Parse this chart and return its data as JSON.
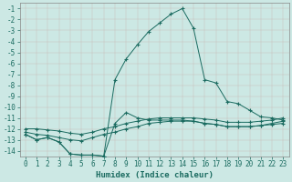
{
  "xlabel": "Humidex (Indice chaleur)",
  "bg_color": "#cce8e4",
  "grid_color": "#b0d8d2",
  "line_color": "#1a6b60",
  "xlim": [
    -0.5,
    23.5
  ],
  "ylim": [
    -14.5,
    -0.5
  ],
  "xticks": [
    0,
    1,
    2,
    3,
    4,
    5,
    6,
    7,
    8,
    9,
    10,
    11,
    12,
    13,
    14,
    15,
    16,
    17,
    18,
    19,
    20,
    21,
    22,
    23
  ],
  "yticks": [
    -1,
    -2,
    -3,
    -4,
    -5,
    -6,
    -7,
    -8,
    -9,
    -10,
    -11,
    -12,
    -13,
    -14
  ],
  "line_peak_x": [
    0,
    1,
    2,
    3,
    4,
    5,
    6,
    7,
    8,
    9,
    10,
    11,
    12,
    13,
    14,
    15,
    16,
    17,
    18,
    19,
    20,
    21,
    22,
    23
  ],
  "line_peak_y": [
    -12.5,
    -13.0,
    -12.8,
    -13.2,
    -14.3,
    -14.4,
    -14.4,
    -14.5,
    -7.5,
    -5.6,
    -4.3,
    -3.1,
    -2.3,
    -1.5,
    -1.0,
    -2.8,
    -7.5,
    -7.8,
    -9.5,
    -9.7,
    -10.3,
    -10.9,
    -11.0,
    -11.2
  ],
  "line_top_x": [
    0,
    1,
    2,
    3,
    4,
    5,
    6,
    7,
    8,
    9,
    10,
    11,
    12,
    13,
    14,
    15,
    16,
    17,
    18,
    19,
    20,
    21,
    22,
    23
  ],
  "line_top_y": [
    -12.5,
    -13.0,
    -12.8,
    -13.2,
    -14.3,
    -14.4,
    -14.4,
    -14.5,
    -11.5,
    -10.5,
    -11.0,
    -11.2,
    -11.2,
    -11.2,
    -11.2,
    -11.3,
    -11.5,
    -11.6,
    -11.8,
    -11.8,
    -11.8,
    -11.7,
    -11.6,
    -11.5
  ],
  "line_mid_x": [
    0,
    1,
    2,
    3,
    4,
    5,
    6,
    7,
    8,
    9,
    10,
    11,
    12,
    13,
    14,
    15,
    16,
    17,
    18,
    19,
    20,
    21,
    22,
    23
  ],
  "line_mid_y": [
    -12.3,
    -12.5,
    -12.6,
    -12.8,
    -13.0,
    -13.1,
    -12.8,
    -12.5,
    -12.3,
    -12.0,
    -11.8,
    -11.5,
    -11.4,
    -11.3,
    -11.3,
    -11.3,
    -11.5,
    -11.6,
    -11.8,
    -11.8,
    -11.8,
    -11.7,
    -11.5,
    -11.3
  ],
  "line_bot_x": [
    0,
    1,
    2,
    3,
    4,
    5,
    6,
    7,
    8,
    9,
    10,
    11,
    12,
    13,
    14,
    15,
    16,
    17,
    18,
    19,
    20,
    21,
    22,
    23
  ],
  "line_bot_y": [
    -12.0,
    -12.0,
    -12.1,
    -12.2,
    -12.4,
    -12.5,
    -12.3,
    -12.0,
    -11.8,
    -11.5,
    -11.3,
    -11.1,
    -11.0,
    -11.0,
    -11.0,
    -11.0,
    -11.1,
    -11.2,
    -11.4,
    -11.4,
    -11.4,
    -11.3,
    -11.2,
    -11.0
  ]
}
